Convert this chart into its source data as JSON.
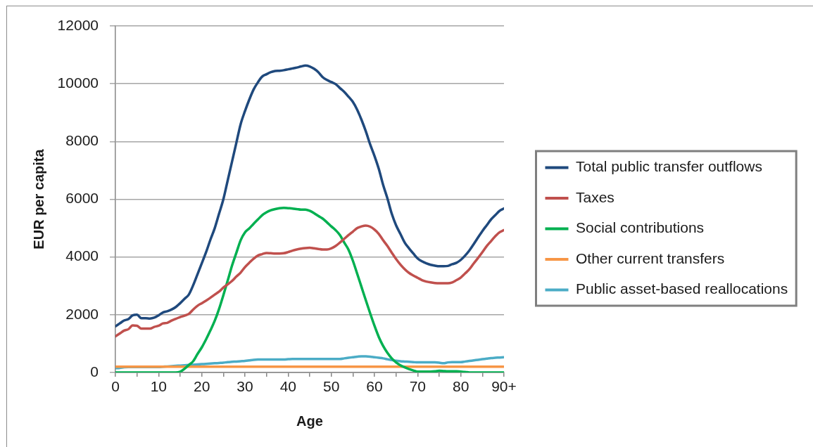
{
  "chart_data": {
    "type": "line",
    "xlabel": "Age",
    "ylabel": "EUR per capita",
    "x": [
      0,
      1,
      2,
      3,
      4,
      5,
      6,
      7,
      8,
      9,
      10,
      11,
      12,
      13,
      14,
      15,
      16,
      17,
      18,
      19,
      20,
      21,
      22,
      23,
      24,
      25,
      26,
      27,
      28,
      29,
      30,
      31,
      32,
      33,
      34,
      35,
      36,
      37,
      38,
      39,
      40,
      41,
      42,
      43,
      44,
      45,
      46,
      47,
      48,
      49,
      50,
      51,
      52,
      53,
      54,
      55,
      56,
      57,
      58,
      59,
      60,
      61,
      62,
      63,
      64,
      65,
      66,
      67,
      68,
      69,
      70,
      71,
      72,
      73,
      74,
      75,
      76,
      77,
      78,
      79,
      80,
      81,
      82,
      83,
      84,
      85,
      86,
      87,
      88,
      89,
      90
    ],
    "series": [
      {
        "name": "Total public transfer outflows",
        "color": "#1f497d",
        "values": [
          1600,
          1700,
          1800,
          1850,
          1980,
          2000,
          1880,
          1880,
          1870,
          1900,
          1980,
          2080,
          2120,
          2180,
          2270,
          2400,
          2550,
          2700,
          3020,
          3400,
          3780,
          4170,
          4600,
          5000,
          5500,
          6000,
          6650,
          7300,
          7950,
          8600,
          9050,
          9450,
          9800,
          10050,
          10250,
          10330,
          10400,
          10440,
          10450,
          10470,
          10500,
          10530,
          10560,
          10600,
          10630,
          10600,
          10520,
          10400,
          10230,
          10130,
          10060,
          9990,
          9850,
          9720,
          9550,
          9370,
          9100,
          8750,
          8350,
          7900,
          7500,
          7050,
          6500,
          6030,
          5500,
          5100,
          4800,
          4500,
          4300,
          4120,
          3950,
          3850,
          3780,
          3730,
          3700,
          3680,
          3680,
          3690,
          3750,
          3800,
          3900,
          4050,
          4230,
          4450,
          4680,
          4900,
          5100,
          5300,
          5450,
          5600,
          5680
        ]
      },
      {
        "name": "Taxes",
        "color": "#c0504d",
        "values": [
          1250,
          1350,
          1450,
          1500,
          1630,
          1620,
          1520,
          1520,
          1520,
          1580,
          1620,
          1700,
          1720,
          1800,
          1860,
          1920,
          1970,
          2030,
          2180,
          2310,
          2400,
          2490,
          2590,
          2700,
          2800,
          2940,
          3050,
          3170,
          3320,
          3460,
          3650,
          3800,
          3940,
          4050,
          4100,
          4140,
          4130,
          4120,
          4120,
          4130,
          4170,
          4220,
          4260,
          4290,
          4310,
          4320,
          4300,
          4280,
          4260,
          4260,
          4300,
          4380,
          4500,
          4630,
          4760,
          4880,
          5000,
          5060,
          5090,
          5050,
          4950,
          4800,
          4580,
          4380,
          4150,
          3930,
          3740,
          3580,
          3450,
          3360,
          3280,
          3200,
          3150,
          3120,
          3100,
          3090,
          3090,
          3090,
          3120,
          3200,
          3290,
          3430,
          3580,
          3780,
          3970,
          4170,
          4380,
          4550,
          4720,
          4860,
          4930
        ]
      },
      {
        "name": "Social contributions",
        "color": "#00b050",
        "values": [
          0,
          0,
          0,
          0,
          0,
          0,
          0,
          0,
          0,
          0,
          0,
          0,
          0,
          0,
          0,
          30,
          130,
          260,
          390,
          640,
          870,
          1150,
          1460,
          1790,
          2200,
          2680,
          3180,
          3700,
          4140,
          4580,
          4850,
          4990,
          5150,
          5300,
          5450,
          5550,
          5620,
          5660,
          5690,
          5700,
          5690,
          5680,
          5660,
          5640,
          5640,
          5600,
          5520,
          5420,
          5330,
          5200,
          5060,
          4930,
          4760,
          4500,
          4250,
          3870,
          3420,
          2960,
          2500,
          2050,
          1620,
          1230,
          920,
          680,
          490,
          350,
          250,
          180,
          120,
          70,
          30,
          30,
          30,
          30,
          40,
          60,
          50,
          40,
          40,
          40,
          30,
          20,
          0,
          0,
          0,
          0,
          0,
          0,
          0,
          0,
          0
        ]
      },
      {
        "name": "Other current transfers",
        "color": "#f79646",
        "values": [
          200,
          200,
          200,
          200,
          200,
          200,
          200,
          200,
          200,
          200,
          200,
          200,
          200,
          200,
          200,
          200,
          200,
          200,
          200,
          200,
          200,
          200,
          200,
          200,
          200,
          200,
          200,
          200,
          200,
          200,
          200,
          200,
          200,
          200,
          200,
          200,
          200,
          200,
          200,
          200,
          200,
          200,
          200,
          200,
          200,
          200,
          200,
          200,
          200,
          200,
          200,
          200,
          200,
          200,
          200,
          200,
          200,
          200,
          200,
          200,
          200,
          200,
          200,
          200,
          200,
          200,
          200,
          200,
          200,
          200,
          200,
          200,
          200,
          200,
          200,
          200,
          200,
          200,
          200,
          200,
          200,
          200,
          200,
          200,
          200,
          200,
          200,
          200,
          200,
          200,
          200
        ]
      },
      {
        "name": "Public asset-based reallocations",
        "color": "#4bacc6",
        "values": [
          150,
          160,
          180,
          190,
          190,
          190,
          190,
          190,
          190,
          190,
          190,
          200,
          210,
          220,
          230,
          240,
          250,
          260,
          270,
          280,
          290,
          300,
          310,
          320,
          330,
          340,
          360,
          370,
          380,
          390,
          400,
          420,
          440,
          450,
          450,
          450,
          450,
          450,
          450,
          450,
          460,
          470,
          470,
          470,
          470,
          470,
          470,
          470,
          470,
          470,
          470,
          470,
          470,
          490,
          510,
          530,
          550,
          560,
          560,
          550,
          530,
          510,
          490,
          460,
          430,
          410,
          390,
          380,
          370,
          360,
          350,
          350,
          350,
          350,
          350,
          340,
          320,
          350,
          360,
          360,
          360,
          380,
          400,
          420,
          440,
          460,
          480,
          500,
          510,
          520,
          530
        ]
      }
    ],
    "xlim": [
      0,
      90
    ],
    "xticks": [
      0,
      {
        "value": 5,
        "label": null
      },
      10,
      {
        "value": 15,
        "label": null
      },
      20,
      {
        "value": 25,
        "label": null
      },
      30,
      {
        "value": 35,
        "label": null
      },
      40,
      {
        "value": 45,
        "label": null
      },
      50,
      {
        "value": 55,
        "label": null
      },
      60,
      {
        "value": 65,
        "label": null
      },
      70,
      {
        "value": 75,
        "label": null
      },
      80,
      {
        "value": 85,
        "label": null
      },
      {
        "value": 90,
        "label": "90+"
      }
    ],
    "ylim": [
      0,
      12000
    ],
    "yticks": [
      0,
      2000,
      4000,
      6000,
      8000,
      10000,
      12000
    ],
    "grid": "y",
    "legend": "right",
    "marker": "none"
  }
}
